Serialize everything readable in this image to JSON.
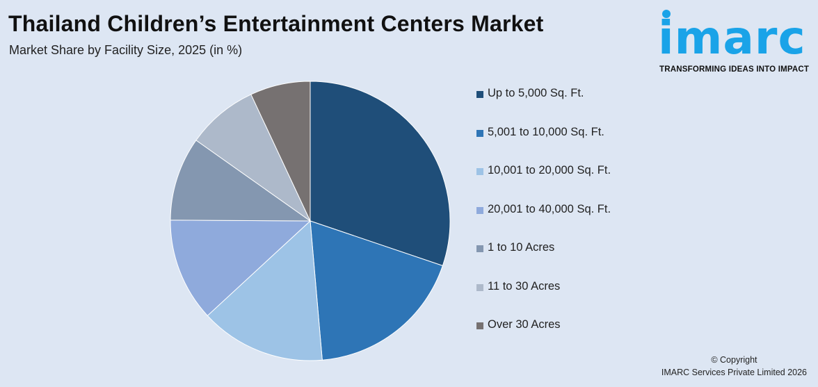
{
  "header": {
    "title": "Thailand Children’s Entertainment Centers Market",
    "subtitle": "Market Share by Facility Size, 2025 (in %)"
  },
  "logo": {
    "word": "imarc",
    "tagline": "TRANSFORMING IDEAS INTO IMPACT",
    "color": "#1aa3e8"
  },
  "footer": {
    "copyright_line1": "© Copyright",
    "copyright_line2": "IMARC Services Private Limited 2026"
  },
  "chart_data": {
    "type": "pie",
    "title": "",
    "legend_position": "right",
    "start_angle_deg": 0,
    "direction": "clockwise",
    "categories": [
      "Up to 5,000 Sq. Ft.",
      "5,001 to 10,000 Sq. Ft.",
      "10,001 to 20,000 Sq. Ft.",
      "20,001 to 40,000 Sq. Ft.",
      "1 to 10 Acres",
      "11 to 30 Acres",
      "Over 30 Acres"
    ],
    "values": [
      30.8,
      18.8,
      14.8,
      12.2,
      9.9,
      8.4,
      7.1
    ],
    "colors": [
      "#1f4e79",
      "#2e75b6",
      "#9dc3e6",
      "#8faadc",
      "#8497b0",
      "#adb9ca",
      "#767171"
    ]
  }
}
